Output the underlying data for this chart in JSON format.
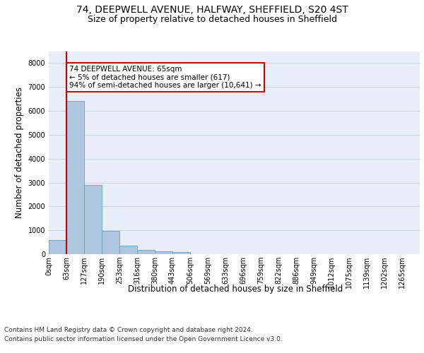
{
  "title_line1": "74, DEEPWELL AVENUE, HALFWAY, SHEFFIELD, S20 4ST",
  "title_line2": "Size of property relative to detached houses in Sheffield",
  "xlabel": "Distribution of detached houses by size in Sheffield",
  "ylabel": "Number of detached properties",
  "bar_values": [
    580,
    6420,
    2910,
    990,
    360,
    175,
    110,
    80,
    0,
    0,
    0,
    0,
    0,
    0,
    0,
    0,
    0,
    0,
    0,
    0,
    0
  ],
  "bar_labels": [
    "0sqm",
    "63sqm",
    "127sqm",
    "190sqm",
    "253sqm",
    "316sqm",
    "380sqm",
    "443sqm",
    "506sqm",
    "569sqm",
    "633sqm",
    "696sqm",
    "759sqm",
    "822sqm",
    "886sqm",
    "949sqm",
    "1012sqm",
    "1075sqm",
    "1139sqm",
    "1202sqm",
    "1265sqm"
  ],
  "bar_color": "#aec6e0",
  "bar_edge_color": "#6b9fc0",
  "grid_color": "#c8d4e8",
  "bg_color": "#e8eef8",
  "annotation_title": "74 DEEPWELL AVENUE: 65sqm",
  "annotation_line1": "← 5% of detached houses are smaller (617)",
  "annotation_line2": "94% of semi-detached houses are larger (10,641) →",
  "annotation_box_color": "#ffffff",
  "annotation_border_color": "#cc0000",
  "vline_color": "#cc0000",
  "ylim": [
    0,
    8500
  ],
  "yticks": [
    0,
    1000,
    2000,
    3000,
    4000,
    5000,
    6000,
    7000,
    8000
  ],
  "footer_line1": "Contains HM Land Registry data © Crown copyright and database right 2024.",
  "footer_line2": "Contains public sector information licensed under the Open Government Licence v3.0.",
  "title_fontsize": 10,
  "subtitle_fontsize": 9,
  "tick_fontsize": 7,
  "ylabel_fontsize": 8.5,
  "xlabel_fontsize": 8.5,
  "footer_fontsize": 6.5
}
